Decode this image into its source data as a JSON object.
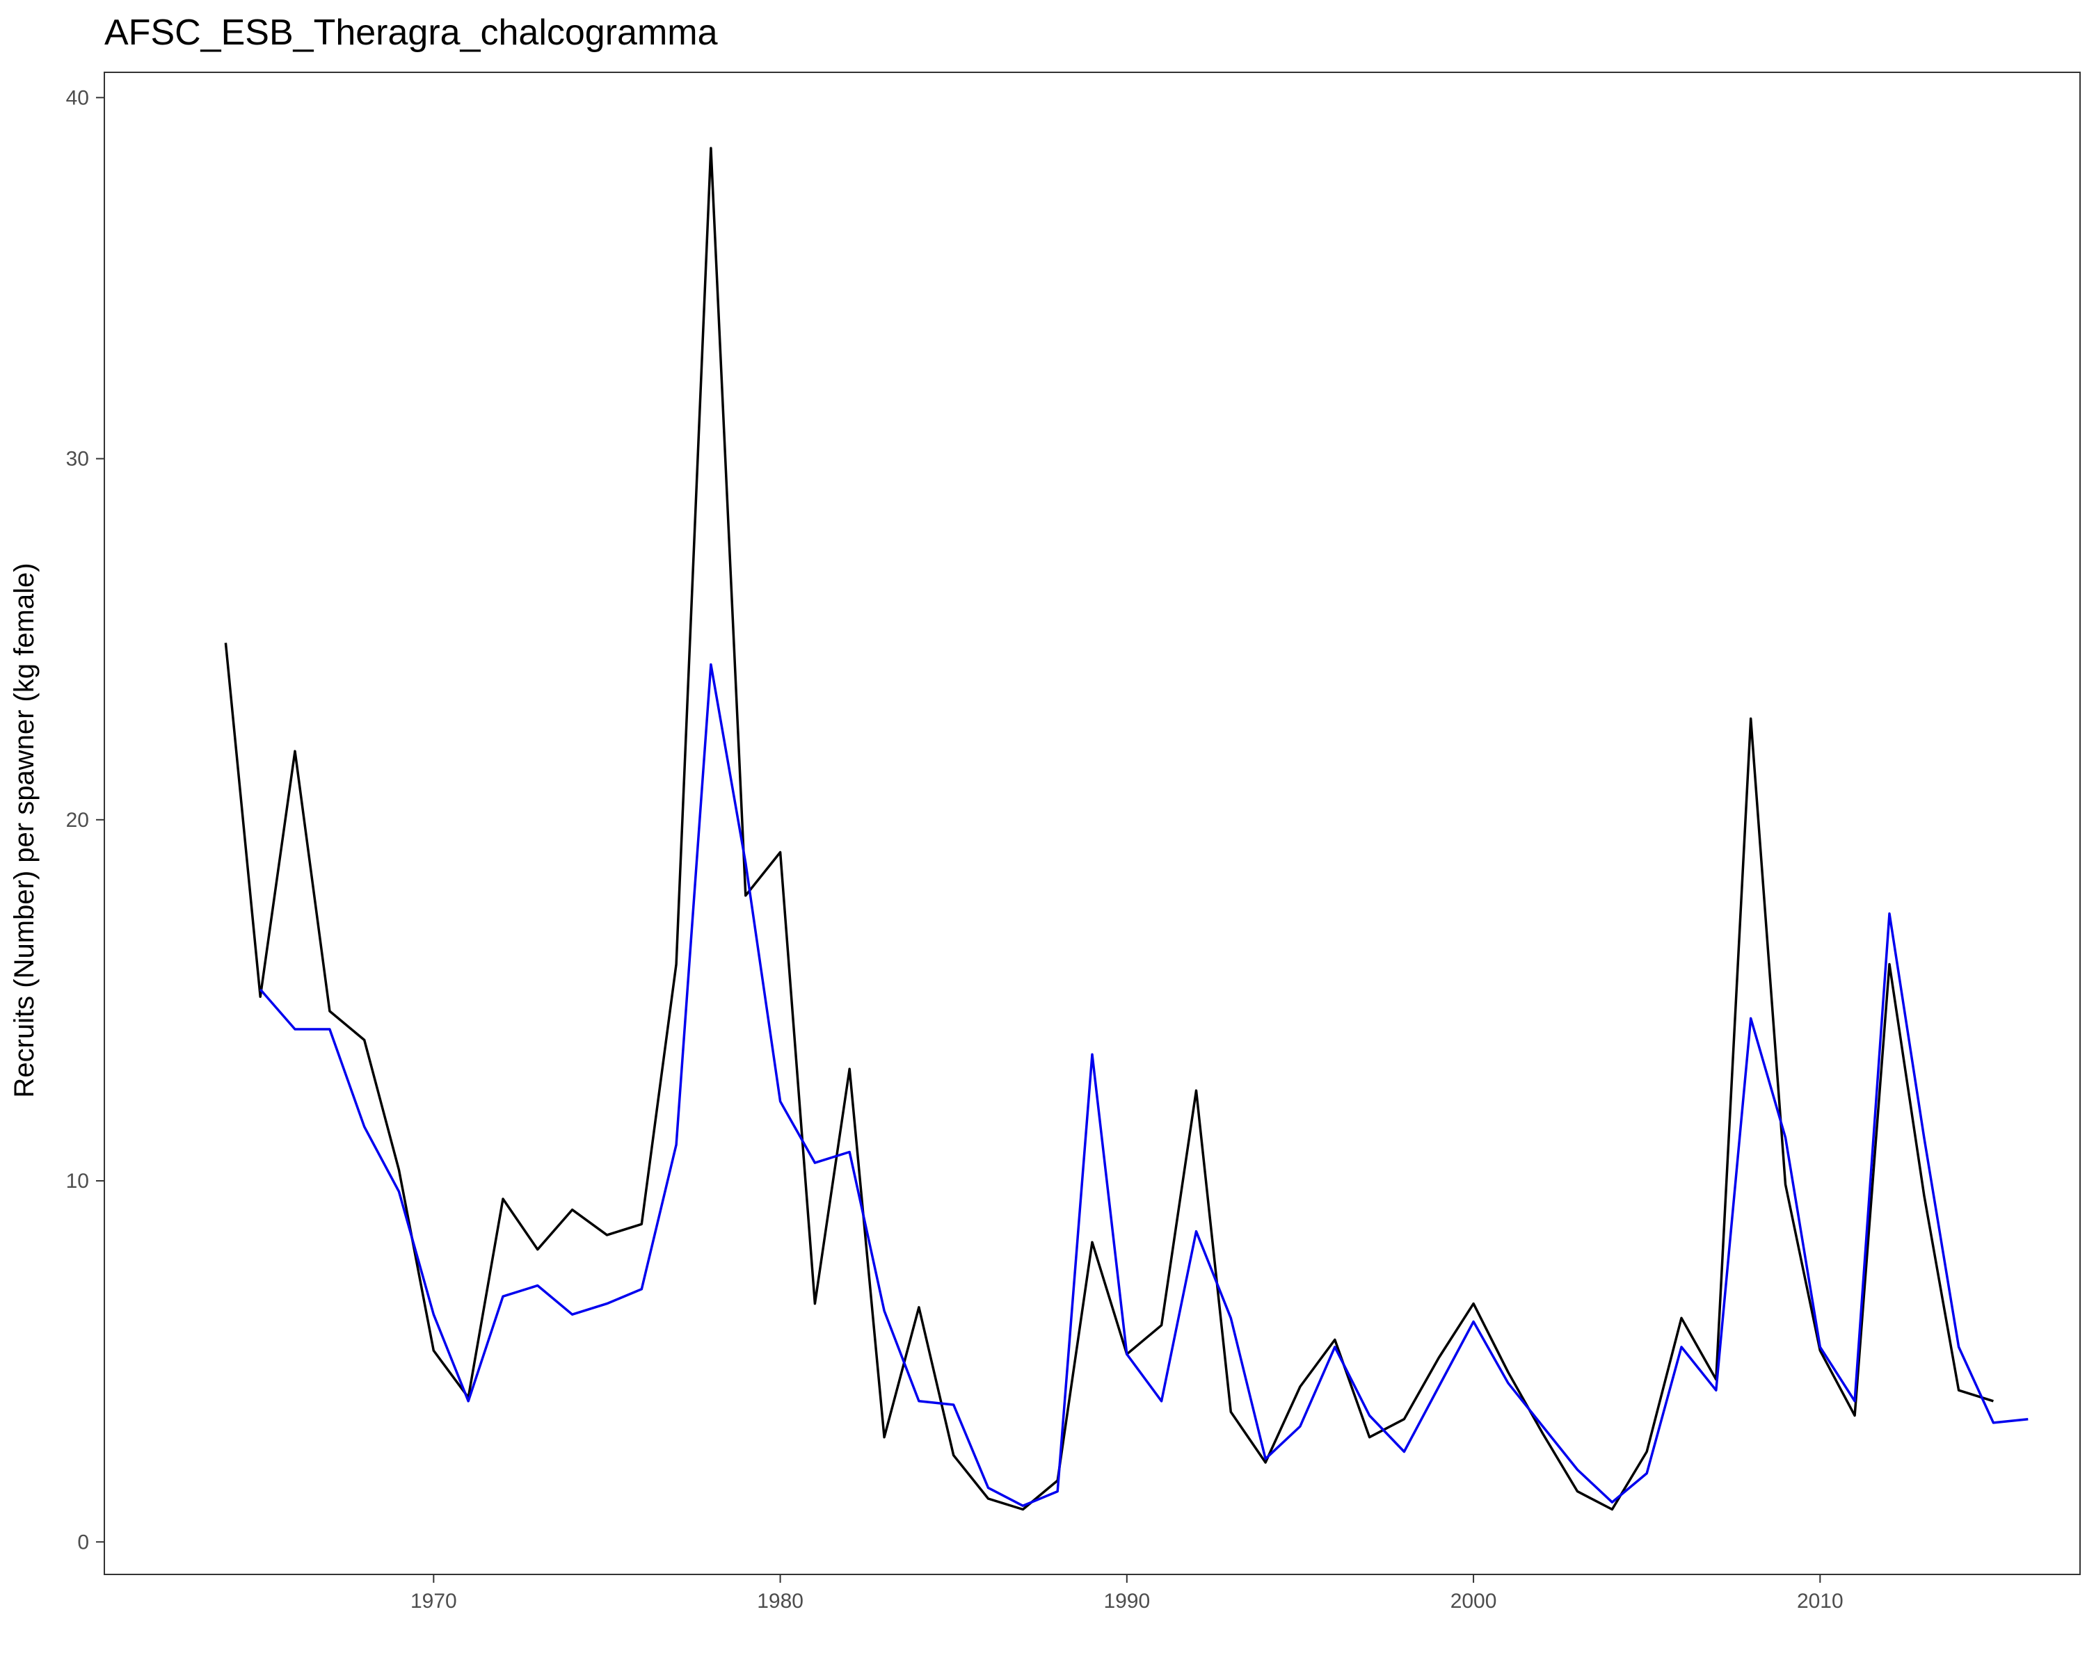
{
  "chart_data": {
    "type": "line",
    "title": "AFSC_ESB_Theragra_chalcogramma",
    "xlabel": "",
    "ylabel": "Recruits (Number) per spawner (kg female)",
    "xlim": [
      1960.5,
      2017.5
    ],
    "ylim": [
      -0.9,
      40.7
    ],
    "xticks": [
      1970,
      1980,
      1990,
      2000,
      2010
    ],
    "yticks": [
      0,
      10,
      20,
      30,
      40
    ],
    "grid": false,
    "legend": "none",
    "series": [
      {
        "color": "#000000",
        "x": [
          1964,
          1965,
          1966,
          1967,
          1968,
          1969,
          1970,
          1971,
          1972,
          1973,
          1974,
          1975,
          1976,
          1977,
          1978,
          1979,
          1980,
          1981,
          1982,
          1983,
          1984,
          1985,
          1986,
          1987,
          1988,
          1989,
          1990,
          1991,
          1992,
          1993,
          1994,
          1995,
          1996,
          1997,
          1998,
          1999,
          2000,
          2001,
          2002,
          2003,
          2004,
          2005,
          2006,
          2007,
          2008,
          2009,
          2010,
          2011,
          2012,
          2013,
          2014,
          2015
        ],
        "y": [
          24.9,
          15.1,
          21.9,
          14.7,
          13.9,
          10.3,
          5.3,
          4.0,
          9.5,
          8.1,
          9.2,
          8.5,
          8.8,
          16.0,
          38.6,
          17.9,
          19.1,
          6.6,
          13.1,
          2.9,
          6.5,
          2.4,
          1.2,
          0.9,
          1.7,
          8.3,
          5.2,
          6.0,
          12.5,
          3.6,
          2.2,
          4.3,
          5.6,
          2.9,
          3.4,
          5.1,
          6.6,
          4.7,
          3.0,
          1.4,
          0.9,
          2.5,
          6.2,
          4.5,
          22.8,
          9.9,
          5.3,
          3.5,
          16.0,
          9.6,
          4.2,
          3.9
        ]
      },
      {
        "color": "#0000ee",
        "x": [
          1965,
          1966,
          1967,
          1968,
          1969,
          1970,
          1971,
          1972,
          1973,
          1974,
          1975,
          1976,
          1977,
          1978,
          1979,
          1980,
          1981,
          1982,
          1983,
          1984,
          1985,
          1986,
          1987,
          1988,
          1989,
          1990,
          1991,
          1992,
          1993,
          1994,
          1995,
          1996,
          1997,
          1998,
          1999,
          2000,
          2001,
          2002,
          2003,
          2004,
          2005,
          2006,
          2007,
          2008,
          2009,
          2010,
          2011,
          2012,
          2013,
          2014,
          2015,
          2016
        ],
        "y": [
          15.3,
          14.2,
          14.2,
          11.5,
          9.7,
          6.3,
          3.9,
          6.8,
          7.1,
          6.3,
          6.6,
          7.0,
          11.0,
          24.3,
          18.8,
          12.2,
          10.5,
          10.8,
          6.4,
          3.9,
          3.8,
          1.5,
          1.0,
          1.4,
          13.5,
          5.2,
          3.9,
          8.6,
          6.2,
          2.3,
          3.2,
          5.4,
          3.5,
          2.5,
          4.3,
          6.1,
          4.4,
          3.2,
          2.0,
          1.1,
          1.9,
          5.4,
          4.2,
          14.5,
          11.2,
          5.4,
          3.9,
          17.4,
          11.2,
          5.4,
          3.3,
          3.4
        ]
      }
    ]
  }
}
